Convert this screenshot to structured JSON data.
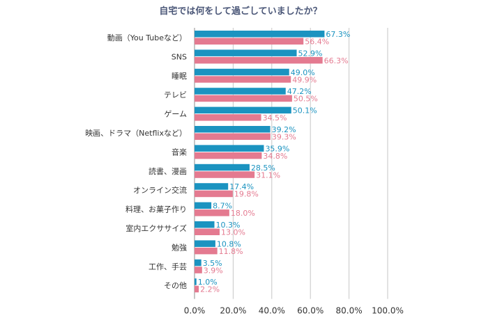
{
  "chart_data": {
    "type": "bar",
    "orientation": "horizontal",
    "title": "自宅では何をして過ごしていましたか？",
    "categories": [
      "動画（You Tubeなど）",
      "SNS",
      "睡眠",
      "テレビ",
      "ゲーム",
      "映画、ドラマ（Netflixなど）",
      "音楽",
      "読書、漫画",
      "オンライン交流",
      "料理、お菓子作り",
      "室内エクササイズ",
      "勉強",
      "工作、手芸",
      "その他"
    ],
    "series": [
      {
        "values": [
          67.3,
          52.9,
          49.0,
          47.2,
          50.1,
          39.2,
          35.9,
          28.5,
          17.4,
          8.7,
          10.3,
          10.8,
          3.5,
          1.0
        ],
        "labels": [
          "67.3%",
          "52.9%",
          "49.0%",
          "47.2%",
          "50.1%",
          "39.2%",
          "35.9%",
          "28.5%",
          "17.4%",
          "8.7%",
          "10.3%",
          "10.8%",
          "3.5%",
          "1.0%"
        ]
      },
      {
        "values": [
          56.4,
          66.3,
          49.9,
          50.5,
          34.5,
          39.3,
          34.8,
          31.1,
          19.8,
          18.0,
          13.0,
          11.8,
          3.9,
          2.2
        ],
        "labels": [
          "56.4%",
          "66.3%",
          "49.9%",
          "50.5%",
          "34.5%",
          "39.3%",
          "34.8%",
          "31.1%",
          "19.8%",
          "18.0%",
          "13.0%",
          "11.8%",
          "3.9%",
          "2.2%"
        ]
      }
    ],
    "xlim": [
      0,
      100
    ],
    "xticks": [
      "0.0%",
      "20.0%",
      "40.0%",
      "60.0%",
      "80.0%",
      "100.0%"
    ],
    "grid": true,
    "legend": "none",
    "colors": {
      "series1": "#1b93c0",
      "series2": "#e47a90",
      "grid": "#c6c6c6",
      "axis": "#8c8c8c",
      "text": "#333333",
      "title": "#4b5778"
    }
  }
}
